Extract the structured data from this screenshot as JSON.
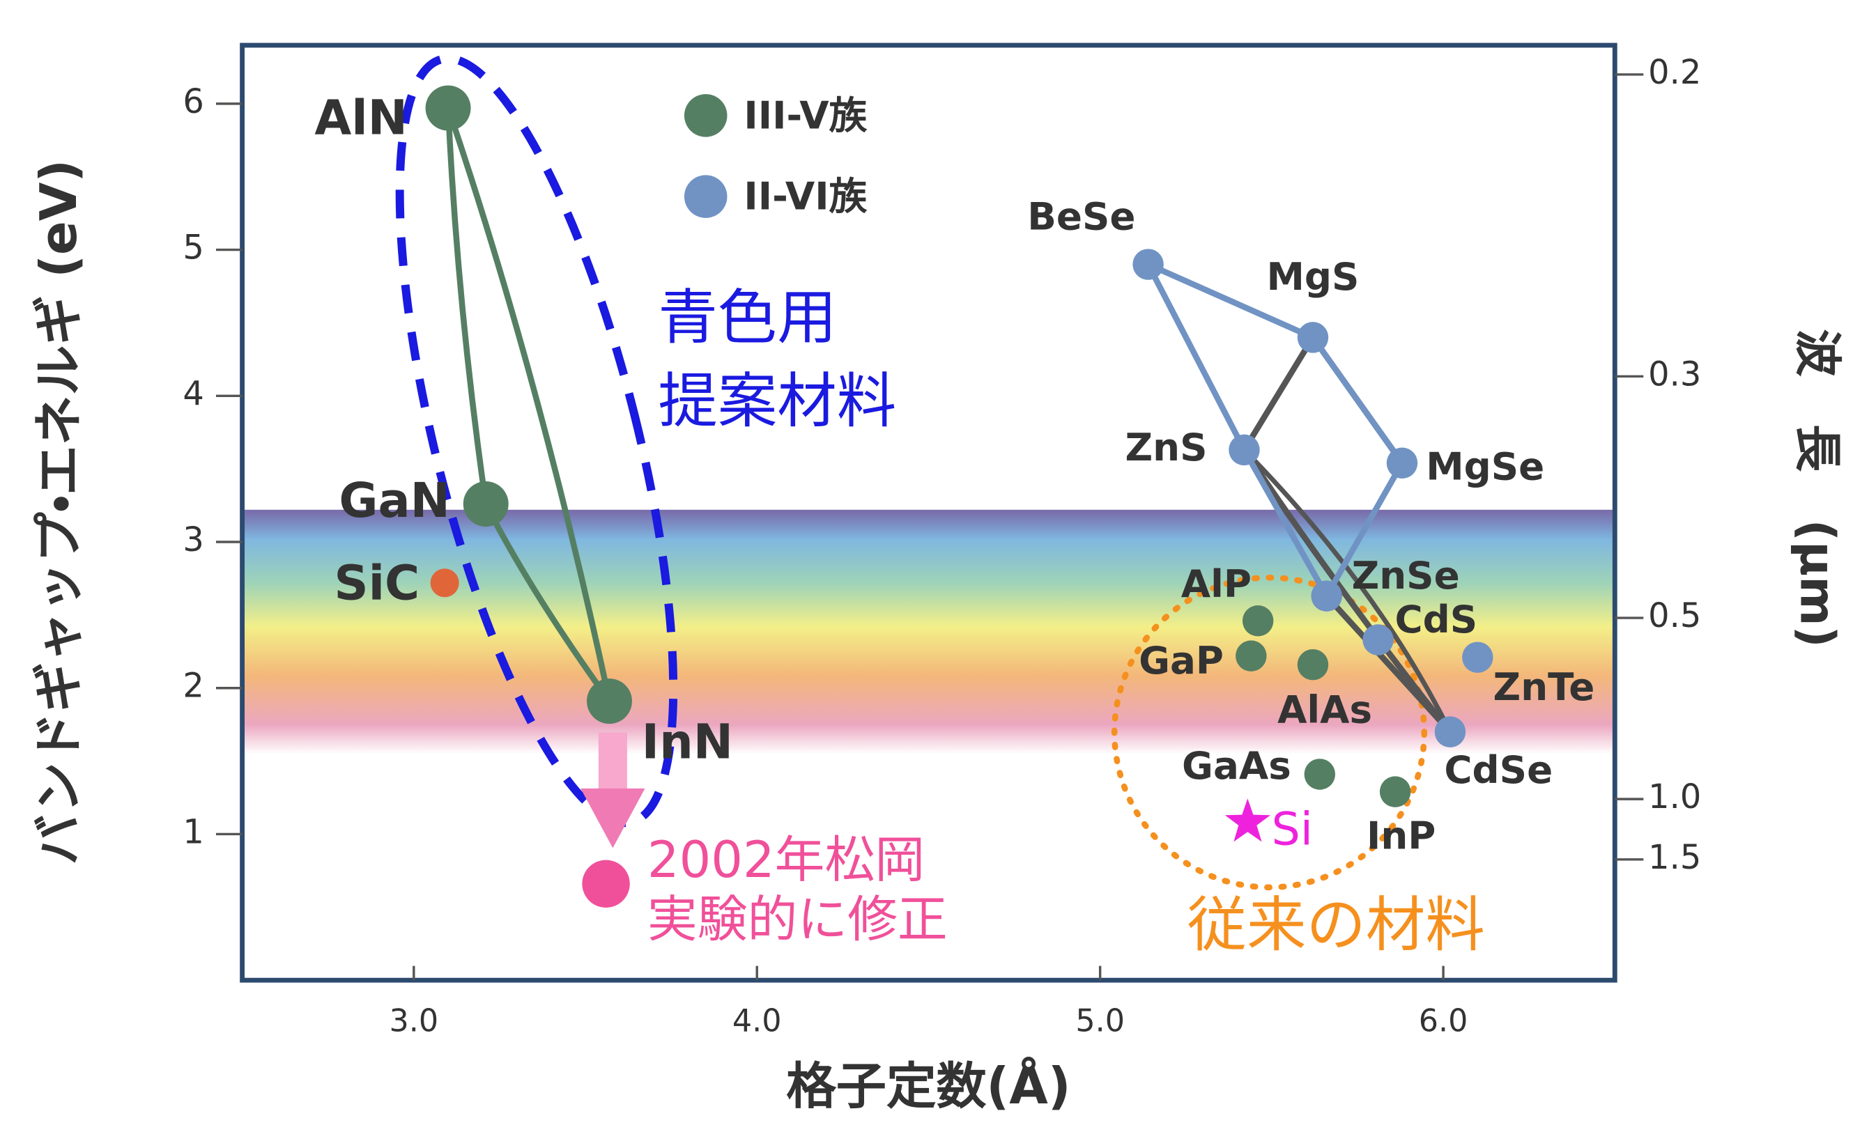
{
  "chart_data": {
    "type": "scatter",
    "xlabel": "格子定数(Å)",
    "ylabel": "バンドギャップ・エネルギ (eV)",
    "y2label": "波　長　(μm)",
    "xlim": [
      2.5,
      6.5
    ],
    "xticks": [
      {
        "value": 3,
        "label": "3.0"
      },
      {
        "value": 4,
        "label": "4.0"
      },
      {
        "value": 5,
        "label": "5.0"
      },
      {
        "value": 6,
        "label": "6.0"
      }
    ],
    "ylim": [
      0,
      6.4
    ],
    "yticks": [
      1,
      2,
      3,
      4,
      5,
      6
    ],
    "y2scale": "reciprocal",
    "y2ticks": [
      0.2,
      0.3,
      0.5,
      {
        "value": 1,
        "label": "1.0"
      },
      1.5
    ],
    "legend": "top-left",
    "series": [
      {
        "name": "III-V族",
        "color": "#557f63",
        "labels": [
          "AlN",
          "GaN",
          "InN",
          "AlP",
          "GaP",
          "AlAs",
          "GaAs",
          "InP"
        ],
        "x": [
          3.1,
          3.21,
          3.57,
          5.46,
          5.44,
          5.62,
          5.64,
          5.86
        ],
        "values": [
          5.97,
          3.26,
          1.91,
          2.46,
          2.22,
          2.16,
          1.41,
          1.29
        ]
      },
      {
        "name": "II-VI族",
        "color": "#7093c4",
        "labels": [
          "BeSe",
          "MgS",
          "ZnS",
          "MgSe",
          "ZnSe",
          "CdS",
          "ZnTe",
          "CdSe"
        ],
        "x": [
          5.14,
          5.62,
          5.42,
          5.88,
          5.66,
          5.81,
          6.1,
          6.02
        ],
        "values": [
          4.9,
          4.4,
          3.63,
          3.54,
          2.63,
          2.33,
          2.21,
          1.7
        ]
      }
    ],
    "extra_points": [
      {
        "label": "SiC",
        "x": 3.09,
        "y": 2.72,
        "color": "#e0663a"
      },
      {
        "label": "Si",
        "x": 5.43,
        "y": 1.08,
        "color": "#ee22dd"
      },
      {
        "label": [
          "2002年松岡",
          "実験的に修正"
        ],
        "x": 3.56,
        "y": 0.66,
        "color": "#f0509a"
      }
    ],
    "annotations": [
      {
        "text": [
          "青色用",
          "提案材料"
        ],
        "color": "#1a1ae0"
      },
      {
        "text": [
          "従来の材料"
        ],
        "color": "#f5901e"
      }
    ]
  }
}
